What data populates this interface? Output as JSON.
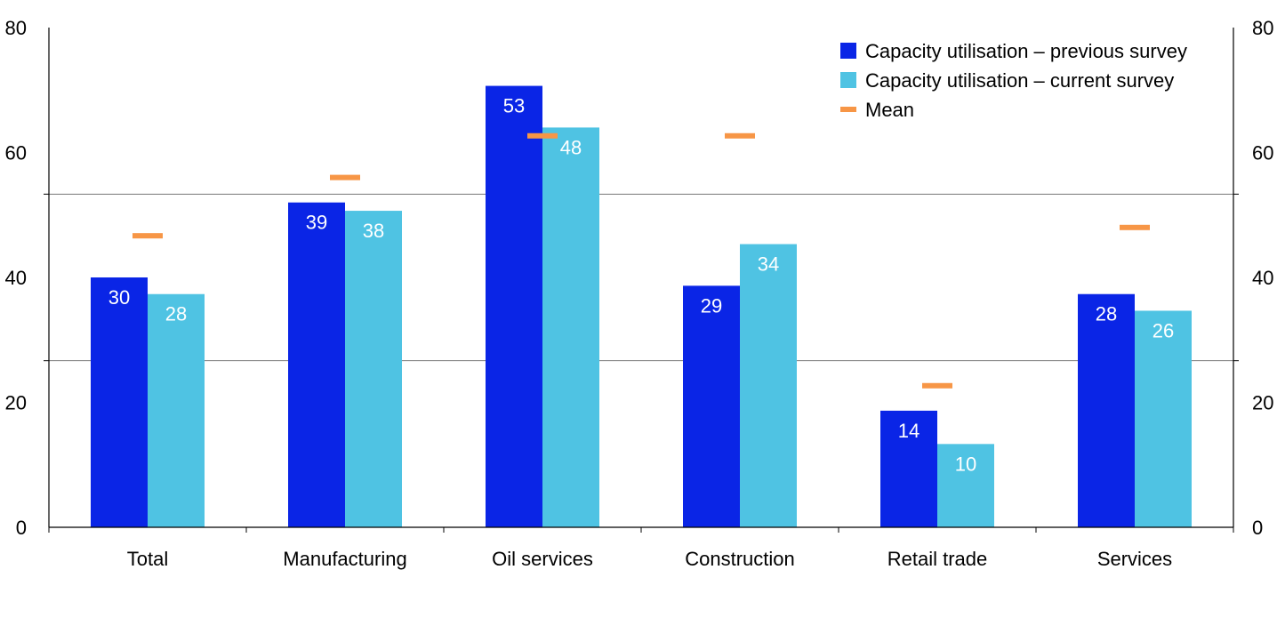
{
  "chart_data": {
    "type": "bar",
    "categories": [
      "Total",
      "Manufacturing",
      "Oil services",
      "Construction",
      "Retail trade",
      "Services"
    ],
    "series": [
      {
        "name": "Capacity utilisation – previous survey",
        "values": [
          30,
          39,
          53,
          29,
          14,
          28
        ],
        "color": "#0a25e6",
        "labels": [
          "30",
          "39",
          "53",
          "29",
          "14",
          "28"
        ]
      },
      {
        "name": "Capacity utilisation – current survey",
        "values": [
          28,
          38,
          48,
          34,
          10,
          26
        ],
        "color": "#4fc3e3",
        "labels": [
          "28",
          "38",
          "48",
          "34",
          "10",
          "26"
        ]
      }
    ],
    "mean": {
      "name": "Mean",
      "values": [
        35,
        42,
        47,
        47,
        17,
        36
      ],
      "color": "#f79646"
    },
    "left_axis": {
      "ylim": [
        0,
        80
      ],
      "ticks": [
        "0",
        "20",
        "40",
        "60",
        "80"
      ]
    },
    "right_axis": {
      "ylim": [
        0,
        80
      ],
      "ticks": [
        "0",
        "20",
        "40",
        "60",
        "80"
      ]
    },
    "bar_ylim": [
      0,
      60
    ],
    "grid": true,
    "legend_position": "top-right",
    "title": "",
    "xlabel": "",
    "ylabel": ""
  }
}
